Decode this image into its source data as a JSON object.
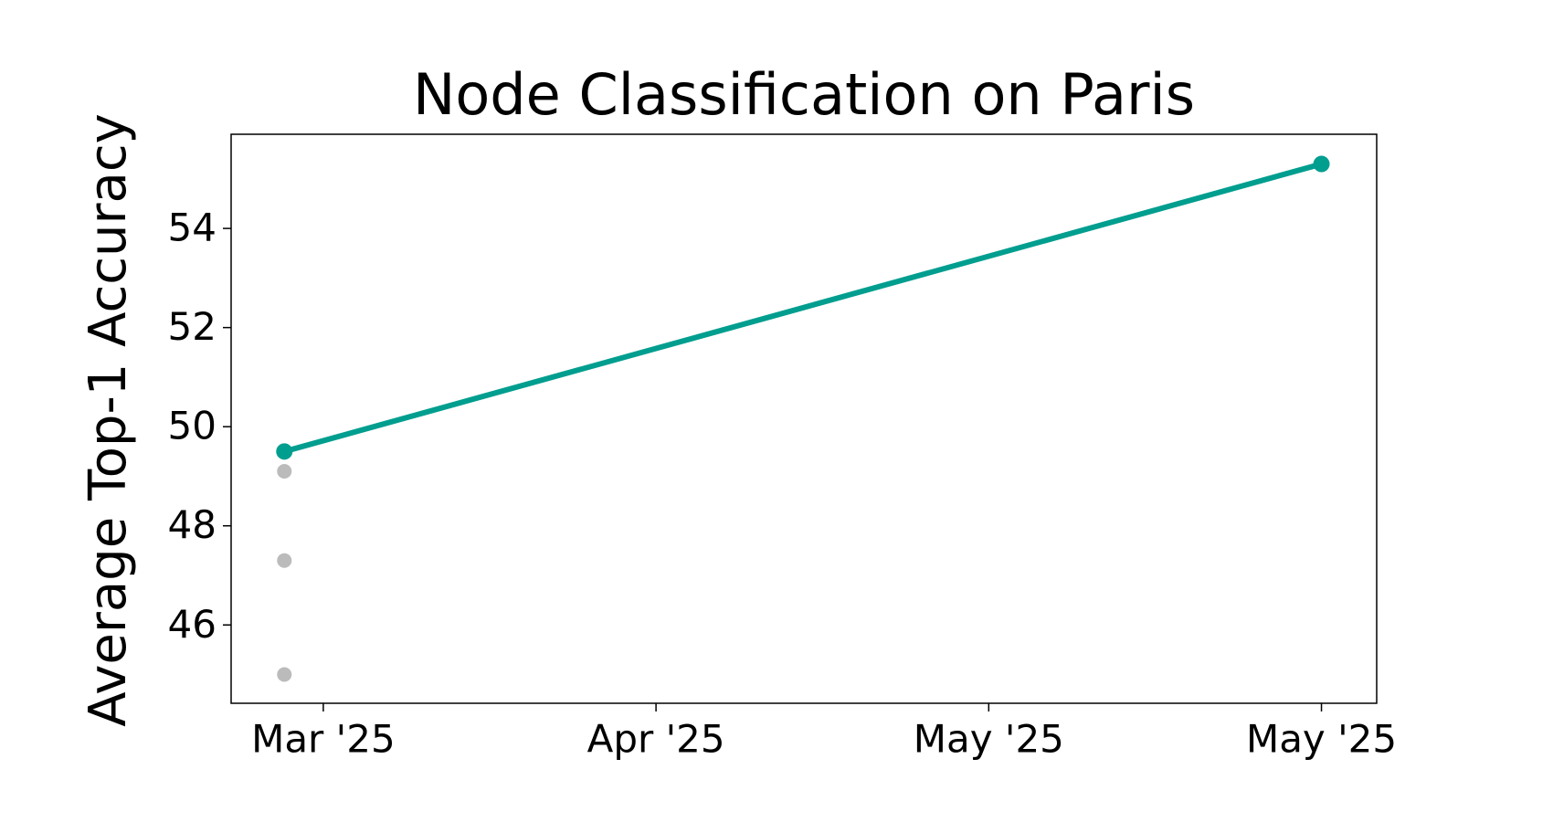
{
  "chart_data": {
    "type": "line",
    "title": "Node Classification on Paris",
    "y_label": "Average Top-1 Accuracy",
    "xlim": [
      -0.277,
      3.166
    ],
    "xticks": [
      {
        "value": 0,
        "label": "Mar '25"
      },
      {
        "value": 1,
        "label": "Apr '25"
      },
      {
        "value": 2,
        "label": "May '25"
      },
      {
        "value": 3,
        "label": "May '25"
      }
    ],
    "ylim": [
      44.42,
      55.9
    ],
    "yticks": [
      46,
      48,
      50,
      52,
      54
    ],
    "grid": false,
    "series": [
      {
        "color": "#bbbbbb",
        "style": "points",
        "x": [
          -0.117,
          -0.117,
          -0.117
        ],
        "values": [
          49.1,
          47.3,
          45.0
        ]
      },
      {
        "color": "#009e8f",
        "style": "line",
        "x": [
          -0.117,
          3.0
        ],
        "values": [
          49.5,
          55.3
        ]
      }
    ]
  }
}
